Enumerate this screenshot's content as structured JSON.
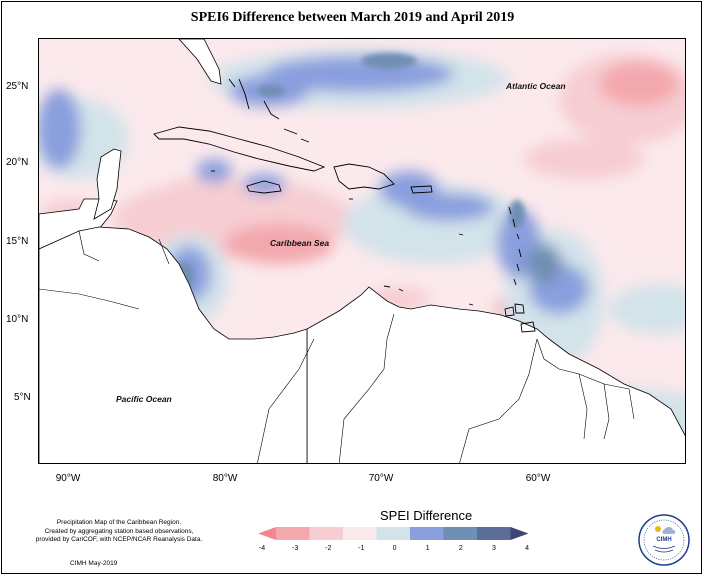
{
  "title": "SPEI6 Difference between March 2019 and April 2019",
  "map": {
    "lat_labels": [
      "25°N",
      "20°N",
      "15°N",
      "10°N",
      "5°N"
    ],
    "lon_labels": [
      "90°W",
      "80°W",
      "70°W",
      "60°W"
    ],
    "ocean_labels": {
      "atlantic": "Atlantic Ocean",
      "caribbean": "Caribbean Sea",
      "pacific": "Pacific Ocean"
    }
  },
  "legend": {
    "title": "SPEI Difference",
    "ticks": [
      "-4",
      "-3",
      "-2",
      "-1",
      "0",
      "1",
      "2",
      "3",
      "4"
    ],
    "colors": [
      "#f2878e",
      "#f3a8ad",
      "#f6cdd2",
      "#fbe9ec",
      "#d3e3ea",
      "#8a9fde",
      "#6f8fb3",
      "#5b6d98",
      "#3f4577"
    ]
  },
  "credits": {
    "line1": "Precipitation Map of the Caribbean Region.",
    "line2": "Created by aggregating station based observations,",
    "line3": "provided by CariCOF, with NCEP/NCAR Reanalysis Data.",
    "date": "CIMH May-2019"
  },
  "logo": {
    "text": "CIMH",
    "icon": "cimh-logo-icon"
  }
}
